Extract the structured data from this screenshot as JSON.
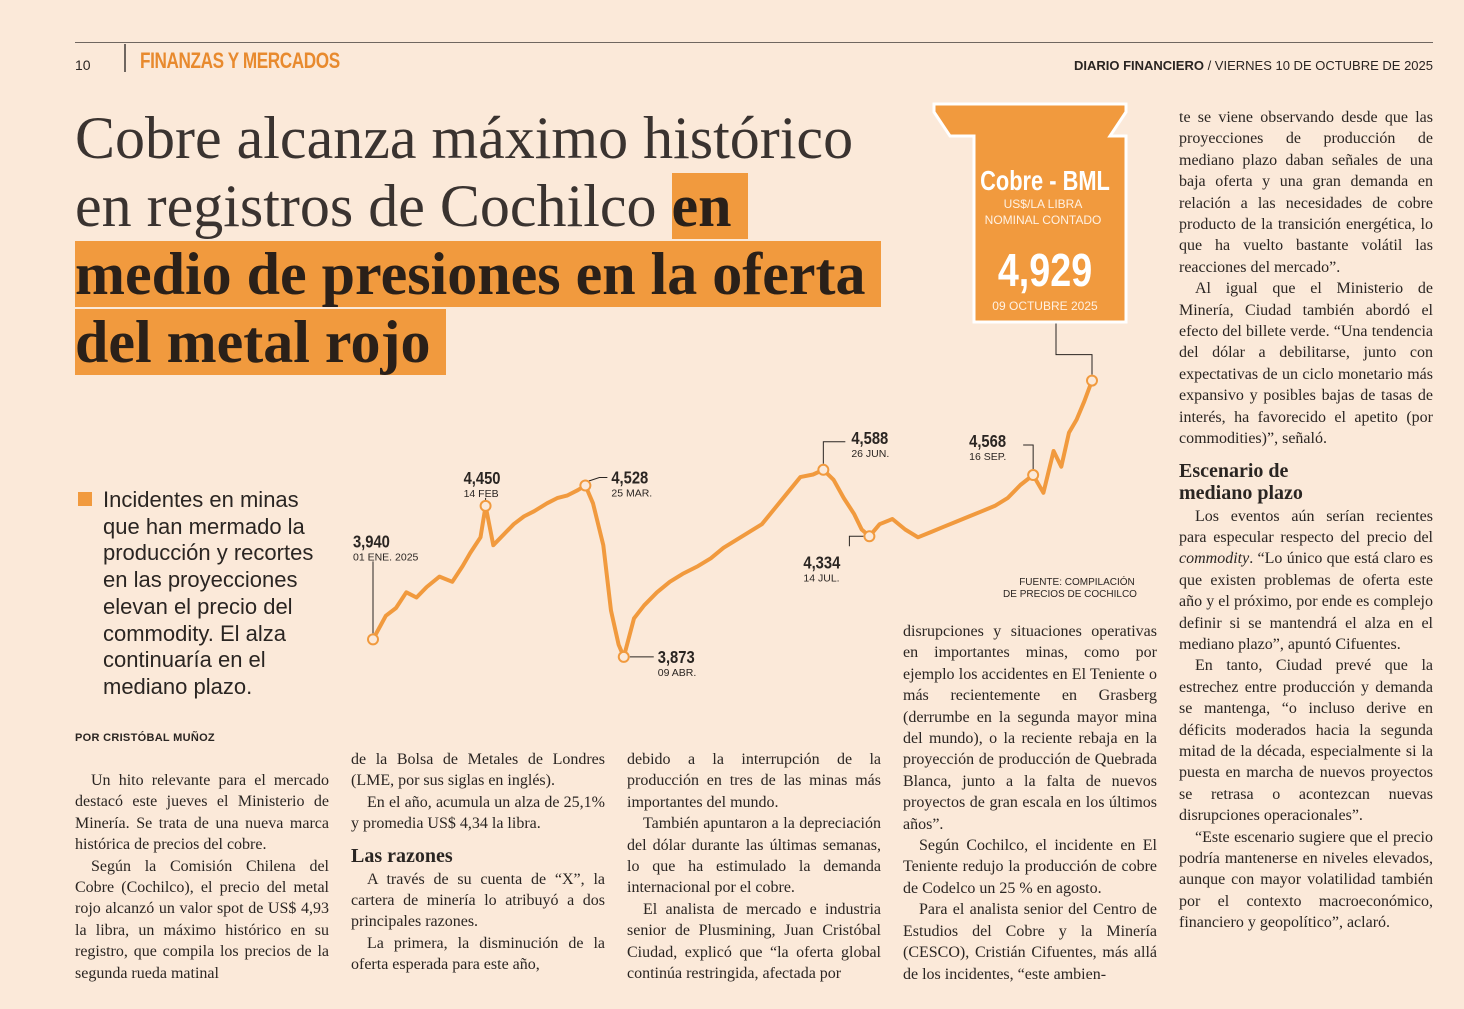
{
  "header": {
    "page_number": "10",
    "section": "FINANZAS Y MERCADOS",
    "publication": "DIARIO FINANCIERO",
    "date": " / VIERNES 10 DE OCTUBRE DE 2025"
  },
  "headline": {
    "plain": "Cobre alcanza máximo histórico en registros de Cochilco ",
    "highlight": "en medio de presiones en la oferta del metal rojo"
  },
  "lede": "Incidentes en minas que han mermado la producción y recortes en las proyecciones elevan el precio del commodity. El alza continuaría en el mediano plazo.",
  "byline": "POR CRISTÓBAL MUÑOZ",
  "accent_color": "#f19a3e",
  "chart_data": {
    "type": "line",
    "title": "Cobre - BML",
    "unit_line1": "US$/LA LIBRA",
    "unit_line2": "NOMINAL CONTADO",
    "latest_value": "4,929",
    "latest_date": "09 OCTUBRE 2025",
    "source_line1": "FUENTE: COMPILACIÓN",
    "source_line2": "DE PRECIOS DE COCHILCO",
    "annotations": [
      {
        "value": "3,940",
        "date": "01 ENE. 2025"
      },
      {
        "value": "4,450",
        "date": "14 FEB"
      },
      {
        "value": "4,528",
        "date": "25 MAR."
      },
      {
        "value": "3,873",
        "date": "09 ABR."
      },
      {
        "value": "4,588",
        "date": "26 JUN."
      },
      {
        "value": "4,334",
        "date": "14 JUL."
      },
      {
        "value": "4,568",
        "date": "16 SEP."
      }
    ],
    "series": [
      {
        "x": [
          "2025-01-01",
          "2025-01-06",
          "2025-01-10",
          "2025-01-14",
          "2025-01-18",
          "2025-01-22",
          "2025-01-27",
          "2025-02-01",
          "2025-02-05",
          "2025-02-08",
          "2025-02-12",
          "2025-02-14",
          "2025-02-17",
          "2025-02-21",
          "2025-02-25",
          "2025-03-01",
          "2025-03-05",
          "2025-03-10",
          "2025-03-14",
          "2025-03-18",
          "2025-03-22",
          "2025-03-25",
          "2025-03-28",
          "2025-04-01",
          "2025-04-04",
          "2025-04-07",
          "2025-04-09",
          "2025-04-13",
          "2025-04-17",
          "2025-04-22",
          "2025-04-27",
          "2025-05-02",
          "2025-05-08",
          "2025-05-13",
          "2025-05-18",
          "2025-05-23",
          "2025-05-28",
          "2025-06-02",
          "2025-06-07",
          "2025-06-12",
          "2025-06-17",
          "2025-06-22",
          "2025-06-26",
          "2025-06-30",
          "2025-07-04",
          "2025-07-08",
          "2025-07-11",
          "2025-07-14",
          "2025-07-18",
          "2025-07-23",
          "2025-07-28",
          "2025-08-02",
          "2025-08-07",
          "2025-08-12",
          "2025-08-17",
          "2025-08-22",
          "2025-08-27",
          "2025-09-01",
          "2025-09-06",
          "2025-09-11",
          "2025-09-16",
          "2025-09-20",
          "2025-09-24",
          "2025-09-27",
          "2025-09-30",
          "2025-10-03",
          "2025-10-06",
          "2025-10-09"
        ],
        "y": [
          3.94,
          4.03,
          4.06,
          4.12,
          4.1,
          4.14,
          4.18,
          4.16,
          4.22,
          4.27,
          4.33,
          4.45,
          4.3,
          4.34,
          4.38,
          4.41,
          4.43,
          4.46,
          4.48,
          4.49,
          4.51,
          4.528,
          4.46,
          4.3,
          4.05,
          3.92,
          3.873,
          4.02,
          4.07,
          4.12,
          4.16,
          4.19,
          4.22,
          4.25,
          4.29,
          4.32,
          4.35,
          4.38,
          4.44,
          4.5,
          4.56,
          4.57,
          4.588,
          4.55,
          4.48,
          4.42,
          4.36,
          4.334,
          4.38,
          4.4,
          4.36,
          4.33,
          4.35,
          4.37,
          4.39,
          4.41,
          4.43,
          4.45,
          4.48,
          4.53,
          4.568,
          4.5,
          4.66,
          4.6,
          4.73,
          4.78,
          4.85,
          4.929
        ]
      }
    ],
    "ylim": [
      3.8,
      5.0
    ],
    "grid": false,
    "line_color": "#f19a3e"
  },
  "columns": {
    "col1": [
      "Un hito relevante para el mercado destacó este jueves el Ministerio de Minería. Se trata de una nueva marca histórica de precios del cobre.",
      "Según la Comisión Chilena del Cobre (Cochilco), el precio del metal rojo alcanzó un valor spot de US$ 4,93 la libra, un máximo histórico en su registro, que compila los precios de la segunda rueda matinal"
    ],
    "col2_p1": "de la Bolsa de Metales de Londres (LME, por sus siglas en inglés).",
    "col2_p2": "En el año, acumula un alza de 25,1% y promedia US$ 4,34 la libra.",
    "col2_sub": "Las razones",
    "col2_p3": "A través de su cuenta de “X”, la cartera de minería lo atribuyó a dos principales razones.",
    "col2_p4": "La primera, la disminución de la oferta esperada para este año,",
    "col3_p1": "debido a la interrupción de la producción en tres de las minas más importantes del mundo.",
    "col3_p2": "También apuntaron a la depreciación del dólar durante las últimas semanas, lo que ha estimulado la demanda internacional por el cobre.",
    "col3_p3": "El analista de mercado e industria senior de Plusmining, Juan Cristóbal Ciudad, explicó que “la oferta global continúa restringida, afectada por",
    "col4_p1": "disrupciones y situaciones operativas en importantes minas, como por ejemplo los accidentes en El Teniente o más recientemente en Grasberg (derrumbe en la segunda mayor mina del mundo), o la reciente rebaja en la proyección de producción de Quebrada Blanca, junto a la falta de nuevos proyectos de gran escala en los últimos años”.",
    "col4_p2": "Según Cochilco, el incidente en El Teniente redujo la producción de cobre de Codelco un 25 % en agosto.",
    "col4_p3": "Para el analista senior del Centro de Estudios del Cobre y la Minería (CESCO), Cristián Cifuentes, más allá de los incidentes, “este ambien-",
    "col5_p1": "te se viene observando desde que las proyecciones de producción de mediano plazo daban señales de una baja oferta y una gran demanda en relación a las necesidades de cobre producto de la transición energética, lo que ha vuelto bastante volátil las reacciones del mercado”.",
    "col5_p2": "Al igual que el Ministerio de Minería, Ciudad también abordó el efecto del billete verde. “Una tendencia del dólar a debilitarse, junto con expectativas de un ciclo monetario más expansivo y posibles bajas de tasas de interés, ha favorecido el apetito (por commodities)”, señaló.",
    "col5_sub": "Escenario de mediano plazo",
    "col5_p3_a": "Los eventos aún serían recientes para especular respecto del precio del ",
    "col5_p3_em": "commodity",
    "col5_p3_b": ". “Lo único que está claro es que existen problemas de oferta este año y el próximo, por ende es complejo definir si se mantendrá el alza en el mediano plazo”, apuntó Cifuentes.",
    "col5_p4": "En tanto, Ciudad prevé que la estrechez entre producción y demanda se mantenga, “o incluso derive en déficits moderados hacia la segunda mitad de la década, especialmente si la puesta en marcha de nuevos proyectos se retrasa o acontezcan nuevas disrupciones operacionales”.",
    "col5_p5": "“Este escenario sugiere que el precio podría mantenerse en niveles elevados, aunque con mayor volatilidad también por el contexto macroeconómico, financiero y geopolítico”, aclaró."
  }
}
